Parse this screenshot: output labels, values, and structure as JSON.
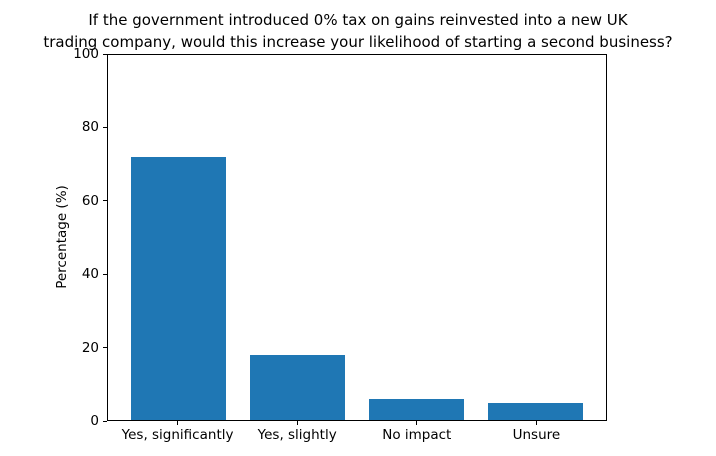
{
  "figure": {
    "background": "#ffffff"
  },
  "chart_data": {
    "type": "bar",
    "title": "If the government introduced 0% tax on gains reinvested into a new UK trading company, would this increase your likelihood of starting a second business?",
    "title_lines": [
      "If the government introduced 0% tax on gains reinvested into a new UK",
      "trading company, would this increase your likelihood of starting a second business?"
    ],
    "categories": [
      "Yes, significantly",
      "Yes, slightly",
      "No impact",
      "Unsure"
    ],
    "values": [
      72,
      17.7,
      5.7,
      4.7
    ],
    "xlabel": "",
    "ylabel": "Percentage (%)",
    "ylim": [
      0,
      100
    ],
    "yticks": [
      0,
      20,
      40,
      60,
      80,
      100
    ],
    "bar_color": "#1f77b4",
    "axis_color": "#000000",
    "grid": false,
    "legend_position": "none"
  }
}
